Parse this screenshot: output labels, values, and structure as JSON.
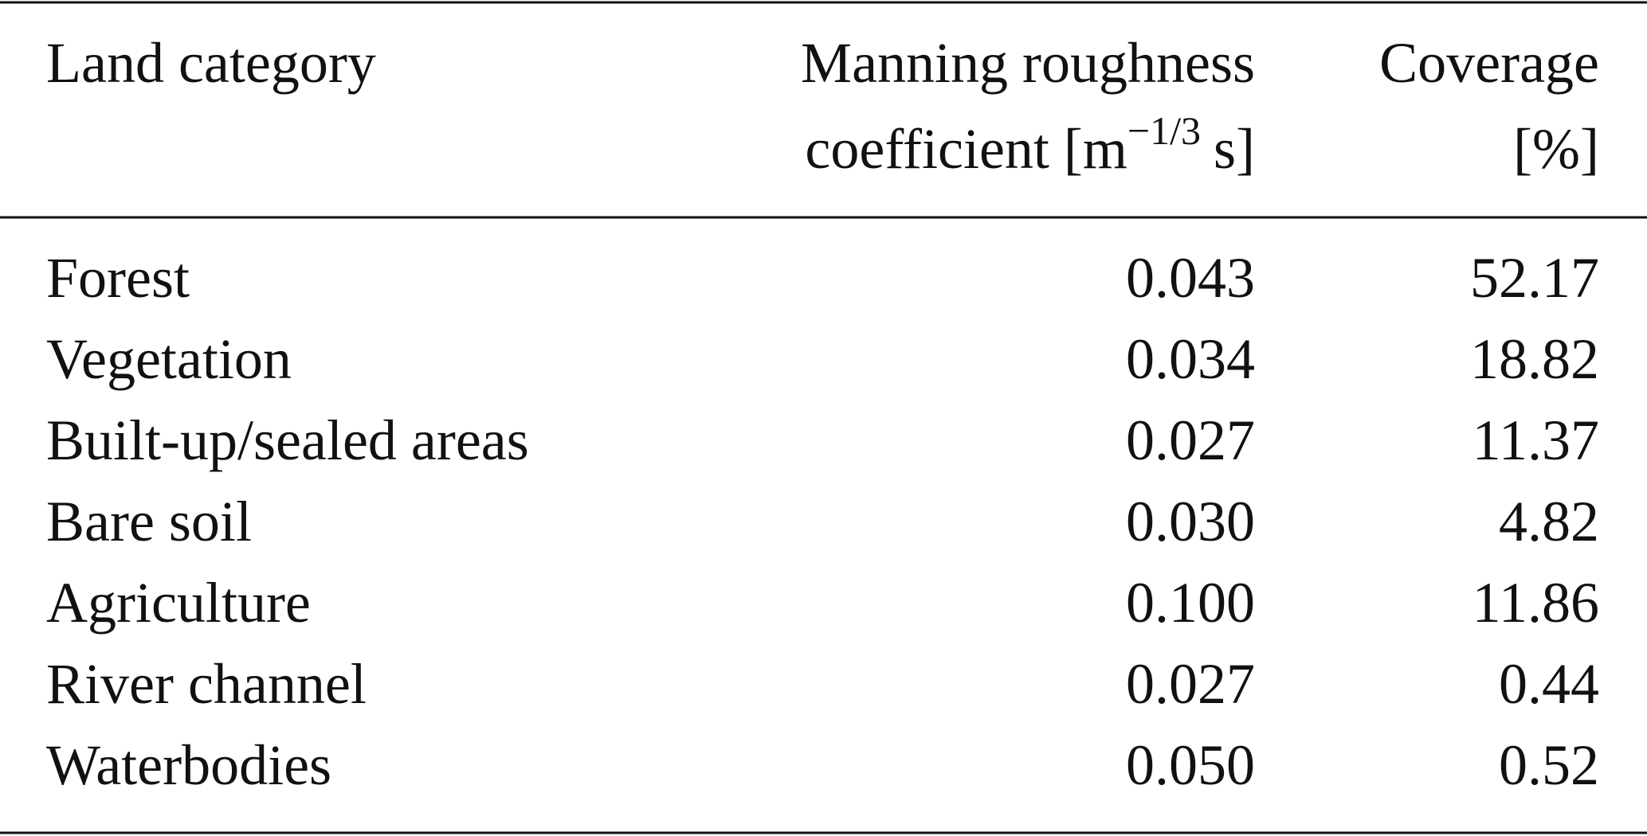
{
  "table": {
    "header": {
      "land_category": "Land category",
      "manning_line1": "Manning roughness",
      "manning_line2_start": "coefficient [m",
      "manning_exponent": "−1/3",
      "manning_line2_end": "s]",
      "coverage_line1": "Coverage",
      "coverage_line2": "[%]"
    },
    "rows": [
      [
        "Forest",
        "0.043",
        "52.17"
      ],
      [
        "Vegetation",
        "0.034",
        "18.82"
      ],
      [
        "Built-up/sealed areas",
        "0.027",
        "11.37"
      ],
      [
        "Bare soil",
        "0.030",
        "4.82"
      ],
      [
        "Agriculture",
        "0.100",
        "11.86"
      ],
      [
        "River channel",
        "0.027",
        "0.44"
      ],
      [
        "Waterbodies",
        "0.050",
        "0.52"
      ]
    ]
  }
}
